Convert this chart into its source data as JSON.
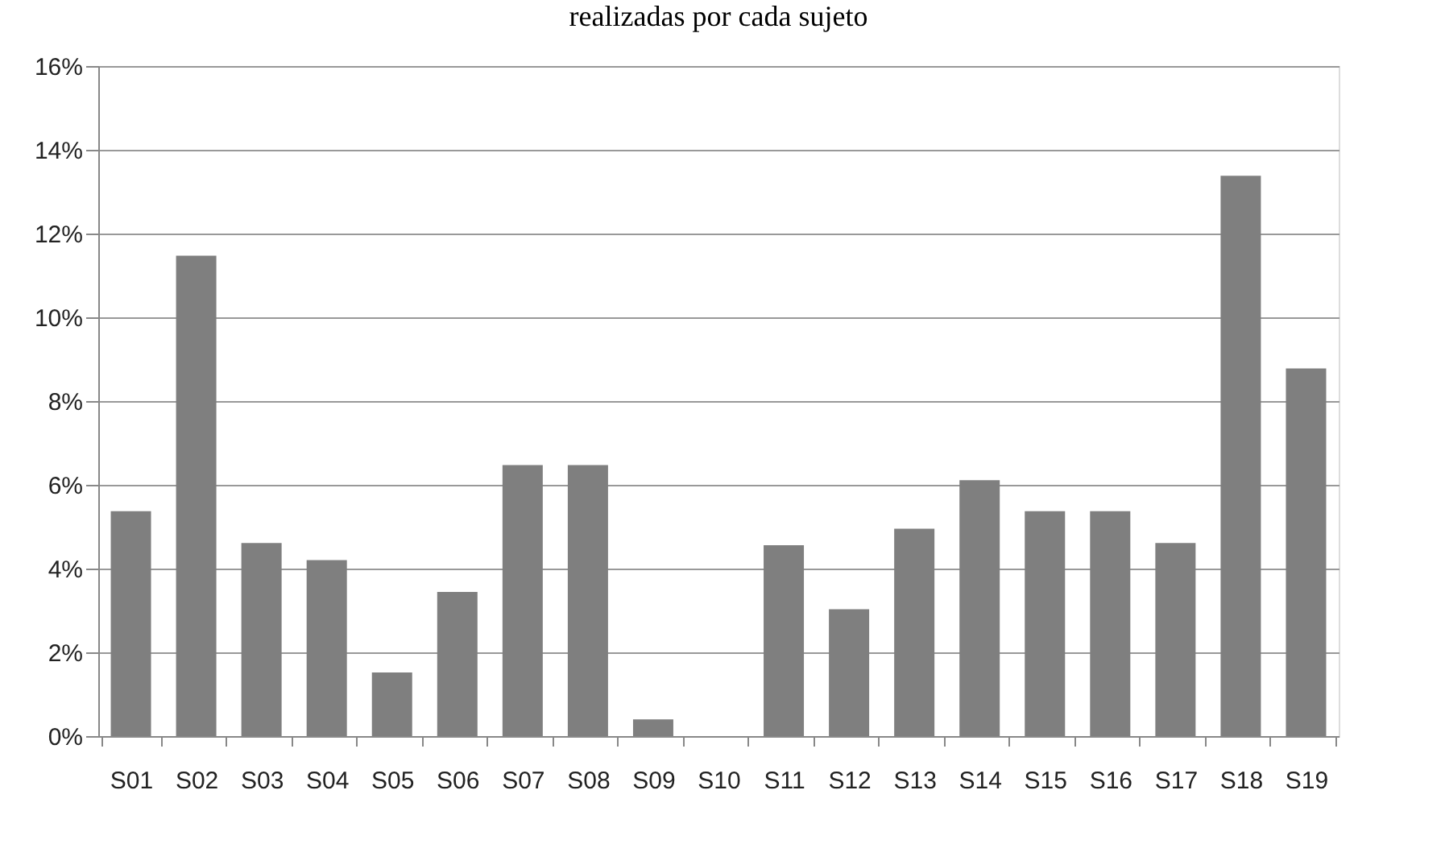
{
  "chart_data": {
    "type": "bar",
    "title": "realizadas por cada sujeto",
    "categories": [
      "S01",
      "S02",
      "S03",
      "S04",
      "S05",
      "S06",
      "S07",
      "S08",
      "S09",
      "S10",
      "S11",
      "S12",
      "S13",
      "S14",
      "S15",
      "S16",
      "S17",
      "S18",
      "S19"
    ],
    "values": [
      5.37,
      11.47,
      4.61,
      4.2,
      1.52,
      3.44,
      6.47,
      6.47,
      0.4,
      0,
      4.56,
      3.03,
      4.95,
      6.11,
      5.37,
      5.37,
      4.61,
      13.38,
      8.78
    ],
    "color": "#7f7f7f",
    "ylim": [
      0,
      16
    ],
    "yticks": [
      {
        "value": 0,
        "label": "0%"
      },
      {
        "value": 2,
        "label": "2%"
      },
      {
        "value": 4,
        "label": "4%"
      },
      {
        "value": 6,
        "label": "6%"
      },
      {
        "value": 8,
        "label": "8%"
      },
      {
        "value": 10,
        "label": "10%"
      },
      {
        "value": 12,
        "label": "12%"
      },
      {
        "value": 14,
        "label": "14%"
      },
      {
        "value": 16,
        "label": "16%"
      }
    ],
    "grid": "y"
  }
}
